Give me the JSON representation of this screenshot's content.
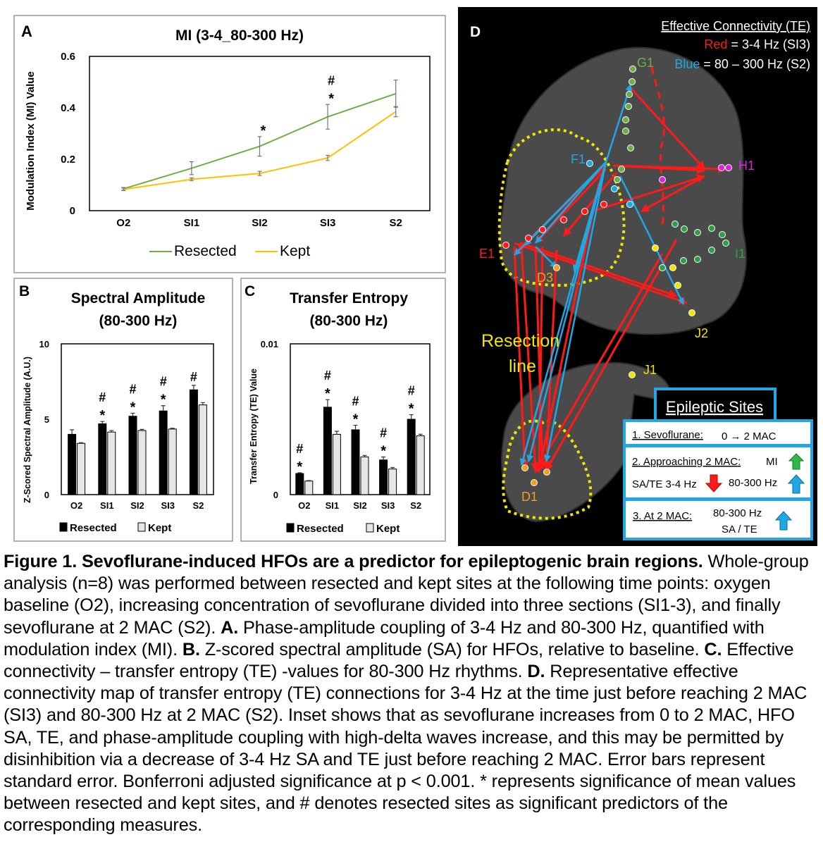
{
  "chart_data": [
    {
      "panel": "A",
      "type": "line",
      "title": "MI (3-4_80-300 Hz)",
      "xlabel": "",
      "ylabel": "Modulation Index (MI) Value",
      "categories": [
        "O2",
        "SI1",
        "SI2",
        "SI3",
        "S2"
      ],
      "ylim": [
        0,
        0.6
      ],
      "yticks": [
        "0",
        "0.2",
        "0.4",
        "0.6"
      ],
      "series": [
        {
          "name": "Resected",
          "color": "#70ad47",
          "values": [
            0.085,
            0.165,
            0.25,
            0.365,
            0.455
          ],
          "errors": [
            0.005,
            0.025,
            0.038,
            0.048,
            0.053
          ]
        },
        {
          "name": "Kept",
          "color": "#ffc000",
          "values": [
            0.083,
            0.122,
            0.145,
            0.205,
            0.385
          ],
          "errors": [
            0.005,
            0.005,
            0.008,
            0.01,
            0.02
          ]
        }
      ],
      "markers": [
        "",
        "",
        "*",
        "#*",
        ""
      ],
      "legend": "bottom"
    },
    {
      "panel": "B",
      "type": "bar",
      "title": [
        "Spectral Amplitude",
        "(80-300 Hz)"
      ],
      "ylabel": "Z-Scored Spectral Amplitude (A.U.)",
      "categories": [
        "O2",
        "SI1",
        "SI2",
        "SI3",
        "S2"
      ],
      "ylim": [
        0,
        10
      ],
      "yticks": [
        "0",
        "5",
        "10"
      ],
      "series": [
        {
          "name": "Resected",
          "color": "#000000",
          "values": [
            4.0,
            4.7,
            5.2,
            5.55,
            6.95
          ],
          "errors": [
            0.3,
            0.15,
            0.2,
            0.35,
            0.3
          ]
        },
        {
          "name": "Kept",
          "color": "#e6e6e6",
          "values": [
            3.4,
            4.15,
            4.25,
            4.35,
            5.95
          ],
          "errors": [
            0.05,
            0.1,
            0.08,
            0.05,
            0.15
          ]
        }
      ],
      "markers": [
        "",
        "#*",
        "#*",
        "#*",
        "#"
      ],
      "legend": "bottom"
    },
    {
      "panel": "C",
      "type": "bar",
      "title": [
        "Transfer Entropy",
        "(80-300 Hz)"
      ],
      "ylabel": "Transfer Entropy (TE) Value",
      "categories": [
        "O2",
        "SI1",
        "SI2",
        "SI3",
        "S2"
      ],
      "ylim": [
        0,
        0.01
      ],
      "yticks": [
        "0",
        "0.01"
      ],
      "series": [
        {
          "name": "Resected",
          "color": "#000000",
          "values": [
            0.0014,
            0.0058,
            0.0043,
            0.0023,
            0.005
          ],
          "errors": [
            5e-05,
            0.0005,
            0.0003,
            0.0002,
            0.0003
          ]
        },
        {
          "name": "Kept",
          "color": "#e6e6e6",
          "values": [
            0.0009,
            0.004,
            0.0025,
            0.0017,
            0.0039
          ],
          "errors": [
            3e-05,
            0.0002,
            0.0001,
            0.0001,
            0.0001
          ]
        }
      ],
      "markers": [
        "#*",
        "#*",
        "#*",
        "#*",
        "#*"
      ],
      "legend": "bottom"
    }
  ],
  "panel_d": {
    "letter": "D",
    "legend_title": "Effective Connectivity (TE)",
    "red_word": "Red",
    "red_text": " = 3-4 Hz (SI3)",
    "blue_word": "Blue",
    "blue_text": " = 80 – 300 Hz (S2)",
    "colors": {
      "red": "#ff1a1a",
      "blue": "#1fa7e6",
      "yellow": "#f2e600",
      "green": "#5aa02c",
      "magenta": "#e020e0"
    },
    "labels": {
      "g1": "G1",
      "f1": "F1",
      "h1": "H1",
      "e1": "E1",
      "i1": "I1",
      "d3": "D3",
      "j2": "J2",
      "j1": "J1",
      "d1": "D1",
      "resection1": "Resection",
      "resection2": "line"
    },
    "inset": {
      "title": "Epileptic Sites",
      "row1_label": "1. Sevoflurane:",
      "row1_value": "0 → 2 MAC",
      "row2_label": "2. Approaching 2 MAC:",
      "row2_mi": "MI",
      "row2_satel": "SA/TE 3-4 Hz",
      "row2_hfo": "80-300 Hz",
      "row3_label": "3. At 2 MAC:",
      "row3_value1": "80-300 Hz",
      "row3_value2": "SA / TE"
    }
  },
  "caption": {
    "title": "Figure 1. Sevoflurane-induced HFOs are a predictor for epileptogenic brain regions.",
    "t0": " Whole-group analysis (n=8) was performed between resected and kept sites at the following time points: oxygen baseline (O2), increasing concentration of sevoflurane divided into three sections (SI1-3), and finally sevoflurane at 2 MAC (S2).  ",
    "a": "A.",
    "ta": " Phase-amplitude coupling of 3-4 Hz and 80-300 Hz, quantified with modulation index (MI).  ",
    "b": "B.",
    "tb": " Z-scored spectral amplitude (SA) for HFOs, relative to baseline.  ",
    "c": "C.",
    "tc": " Effective connectivity – transfer entropy (TE) -values for 80-300 Hz rhythms.  ",
    "d": "D.",
    "td": " Representative effective connectivity map of transfer entropy (TE) connections for 3-4 Hz at the time just before reaching 2 MAC (SI3) and 80-300 Hz at 2 MAC (S2).  Inset shows that as sevoflurane increases from 0 to 2 MAC, HFO SA, TE, and phase-amplitude coupling with high-delta waves increase, and this may be permitted by disinhibition via a decrease of 3-4 Hz SA and TE just before reaching 2 MAC.  Error bars represent standard error.  Bonferroni adjusted significance at p < 0.001. * represents significance of mean values between resected and kept sites, and # denotes resected sites as significant predictors of the corresponding measures."
  }
}
